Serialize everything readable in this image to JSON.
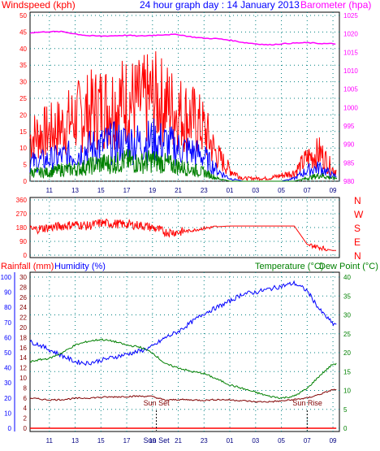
{
  "colors": {
    "wind": "#ff0000",
    "wind_avg": "#0000ff",
    "wind_low": "#008000",
    "barometer": "#ff00ff",
    "direction": "#ff0000",
    "humidity": "#0000ff",
    "temperature": "#008000",
    "dew_point": "#800000",
    "rainfall": "#ff0000",
    "grid": "#008080",
    "axis_left": "#ff0000",
    "axis_right": "#ff00ff",
    "axis_baro": "#ff00ff",
    "axis_dir": "#ff0000",
    "axis_rain": "#0000ff",
    "axis_temp": "#008000"
  },
  "chart_data": [
    {
      "type": "line",
      "title": "24 hour graph day : 14 January 2013",
      "left_label": "Windspeed (kph)",
      "right_label": "Barometer (hpa)",
      "x_ticks": [
        "11",
        "13",
        "15",
        "17",
        "19",
        "21",
        "23",
        "01",
        "03",
        "05",
        "07",
        "09"
      ],
      "y_left_ticks": [
        "0",
        "5",
        "10",
        "15",
        "20",
        "25",
        "30",
        "35",
        "40",
        "45",
        "50"
      ],
      "y_left_range": [
        0,
        50
      ],
      "y_right_ticks": [
        "980",
        "985",
        "990",
        "995",
        "1000",
        "1005",
        "1010",
        "1015",
        "1020",
        "1025"
      ],
      "y_right_range": [
        980,
        1025
      ],
      "x_hours": [
        9.5,
        10,
        11,
        12,
        13,
        14,
        15,
        16,
        17,
        18,
        19,
        20,
        21,
        22,
        23,
        24,
        25,
        26,
        27,
        28,
        29,
        30,
        31,
        32,
        33
      ],
      "series": [
        {
          "key": "gust",
          "values": [
            15,
            16,
            17,
            19,
            22,
            24,
            26,
            27,
            28,
            27,
            29,
            27,
            24,
            22,
            18,
            9,
            4,
            1,
            1,
            1,
            2,
            3,
            8,
            10,
            4
          ]
        },
        {
          "key": "average",
          "values": [
            7,
            7,
            8,
            9,
            10,
            12,
            13,
            14,
            14,
            14,
            15,
            14,
            12,
            11,
            9,
            4,
            1,
            0,
            0,
            0,
            0,
            1,
            4,
            5,
            2
          ]
        },
        {
          "key": "low",
          "values": [
            3,
            3,
            3,
            4,
            4,
            5,
            6,
            6,
            7,
            6,
            7,
            6,
            5,
            4,
            3,
            1,
            0,
            0,
            0,
            0,
            0,
            0,
            1,
            2,
            1
          ]
        },
        {
          "key": "barometer",
          "values": [
            1020.3,
            1020.4,
            1020.6,
            1020.6,
            1020.0,
            1019.5,
            1019.4,
            1019.5,
            1019.6,
            1019.4,
            1019.6,
            1019.8,
            1019.8,
            1019.2,
            1018.8,
            1018.7,
            1018.3,
            1017.7,
            1017.3,
            1017.0,
            1017.3,
            1017.5,
            1017.6,
            1017.4,
            1017.3
          ]
        }
      ]
    },
    {
      "type": "line",
      "title": "",
      "right_label_letters": [
        "N",
        "W",
        "S",
        "E",
        "N"
      ],
      "y_left_ticks": [
        "360",
        "270",
        "180",
        "90",
        "0"
      ],
      "y_range": [
        0,
        360
      ],
      "x_hours": [
        9.5,
        10,
        11,
        12,
        13,
        14,
        15,
        16,
        17,
        18,
        19,
        20,
        21,
        22,
        23,
        24,
        25,
        26,
        27,
        28,
        29,
        30,
        31,
        32,
        33
      ],
      "series": [
        {
          "key": "direction",
          "values": [
            165,
            170,
            180,
            190,
            200,
            190,
            210,
            205,
            200,
            195,
            180,
            150,
            150,
            160,
            175,
            185,
            190,
            190,
            190,
            190,
            190,
            190,
            70,
            50,
            30
          ]
        }
      ]
    },
    {
      "type": "line",
      "labels": {
        "rainfall": "Rainfall (mm)",
        "humidity": "Humidity (%)",
        "temperature": "Temperature (°C)",
        "dew_point": "Dew Point (°C)",
        "sunset": "Sun Set",
        "sunrise": "Sun Rise",
        "bottom_extra": "Sun Set"
      },
      "y_rain_ticks": [
        "0",
        "10",
        "20",
        "30",
        "40",
        "50",
        "60",
        "70",
        "80",
        "90",
        "100"
      ],
      "y_hum_ticks": [
        "0",
        "2",
        "4",
        "6",
        "8",
        "10",
        "12",
        "14",
        "16",
        "18",
        "20",
        "22",
        "24",
        "26",
        "28",
        "30"
      ],
      "y_temp_ticks": [
        "0",
        "5",
        "10",
        "15",
        "20",
        "25",
        "30",
        "35",
        "40"
      ],
      "x_hours": [
        9.5,
        10,
        11,
        12,
        13,
        14,
        15,
        16,
        17,
        18,
        19,
        20,
        21,
        22,
        23,
        24,
        25,
        26,
        27,
        28,
        29,
        30,
        31,
        32,
        33
      ],
      "series": [
        {
          "key": "humidity",
          "unit": "%",
          "values": [
            57,
            56,
            52,
            48,
            44,
            43,
            45,
            47,
            49,
            51,
            54,
            60,
            64,
            70,
            76,
            80,
            84,
            89,
            90,
            92,
            94,
            96,
            91,
            78,
            69
          ]
        },
        {
          "key": "temperature",
          "unit": "°C",
          "values": [
            17.5,
            18,
            18.5,
            20,
            22,
            23,
            23.5,
            23,
            22,
            21.5,
            20,
            17,
            16,
            15,
            14.5,
            13,
            11.5,
            10.5,
            9.5,
            8.5,
            8,
            8.5,
            10.5,
            14,
            17
          ]
        },
        {
          "key": "dew_point",
          "unit": "°C",
          "values": [
            8,
            7.8,
            7.5,
            7.6,
            7.9,
            8.0,
            8.2,
            8.3,
            8.4,
            8.5,
            8.4,
            7.4,
            7.6,
            7.5,
            7.4,
            7.6,
            7.5,
            7.3,
            7.0,
            7.0,
            7.2,
            7.6,
            8.0,
            9.0,
            10.2
          ]
        },
        {
          "key": "rainfall",
          "unit": "mm",
          "values": [
            0,
            0,
            0,
            0,
            0,
            0,
            0,
            0,
            0,
            0,
            0,
            0,
            0,
            0,
            0,
            0,
            0,
            0,
            0,
            0,
            0,
            0,
            0,
            0,
            0
          ]
        }
      ],
      "sunset_hour": 19.3,
      "sunrise_hour": 31.0
    }
  ]
}
